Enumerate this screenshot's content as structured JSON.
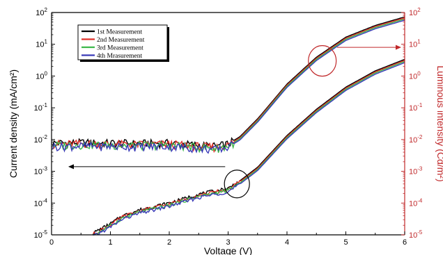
{
  "chart_data": {
    "type": "line",
    "x": [
      0,
      0.5,
      1,
      1.5,
      2,
      2.5,
      3,
      3.5,
      4,
      4.5,
      5,
      5.5,
      6
    ],
    "xlabel": "Voltage (V)",
    "xlim": [
      0,
      6
    ],
    "xticks": [
      "0",
      "1",
      "2",
      "3",
      "4",
      "5",
      "6"
    ],
    "ylabel_left": "Current density (mA/cm²)",
    "ylabel_right": "Luminous intensity (Cd/m²)",
    "ylim": [
      1e-05,
      100
    ],
    "yscale": "log",
    "yticks_left": [
      {
        "base": "10",
        "exp": "2"
      },
      {
        "base": "10",
        "exp": "1"
      },
      {
        "base": "10",
        "exp": "0"
      },
      {
        "base": "10",
        "exp": "-1"
      },
      {
        "base": "10",
        "exp": "-2"
      },
      {
        "base": "10",
        "exp": "-3"
      },
      {
        "base": "10",
        "exp": "-4"
      },
      {
        "base": "10",
        "exp": "-5"
      }
    ],
    "yticks_right": [
      {
        "base": "10",
        "exp": "2"
      },
      {
        "base": "10",
        "exp": "1"
      },
      {
        "base": "10",
        "exp": "0"
      },
      {
        "base": "10",
        "exp": "-1"
      },
      {
        "base": "10",
        "exp": "-2"
      },
      {
        "base": "10",
        "exp": "-3"
      },
      {
        "base": "10",
        "exp": "-4"
      },
      {
        "base": "10",
        "exp": "-5"
      }
    ],
    "legend_position": "top-left",
    "series": [
      {
        "name": "1st Measurement",
        "color": "#000000"
      },
      {
        "name": "2nd Measurement",
        "color": "#e0302a"
      },
      {
        "name": "3rd Measurement",
        "color": "#3cb84a"
      },
      {
        "name": "4th Mrasurement",
        "color": "#3a3ab8"
      }
    ],
    "curves": {
      "current_density": {
        "axis": "left",
        "x": [
          0.7,
          1.0,
          1.2,
          1.5,
          2.0,
          2.5,
          3.0,
          3.2,
          3.5,
          4.0,
          4.5,
          5.0,
          5.5,
          6.0
        ],
        "y": [
          1e-05,
          2e-05,
          3.5e-05,
          5.5e-05,
          9e-05,
          0.00017,
          0.00026,
          0.00045,
          0.0012,
          0.012,
          0.08,
          0.4,
          1.3,
          3.0
        ]
      },
      "luminous_intensity": {
        "axis": "right",
        "x": [
          0.02,
          0.5,
          1.0,
          1.5,
          2.0,
          2.5,
          2.8,
          3.0,
          3.2,
          3.5,
          4.0,
          4.5,
          5.0,
          5.5,
          6.0
        ],
        "y": [
          0.007,
          0.0072,
          0.007,
          0.0068,
          0.007,
          0.006,
          0.0055,
          0.0065,
          0.011,
          0.04,
          0.5,
          3.5,
          15,
          35,
          65
        ]
      }
    },
    "series_y_offsets": [
      1.12,
      1.04,
      0.96,
      0.88
    ],
    "colors": {
      "left_axis": "#000000",
      "right_axis": "#c0282a"
    }
  }
}
